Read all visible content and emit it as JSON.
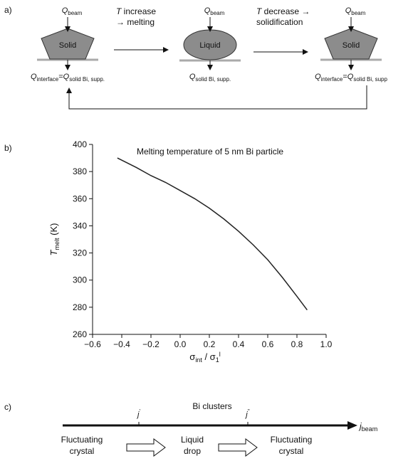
{
  "labels": {
    "a": "a)",
    "b": "b)",
    "c": "c)"
  },
  "panel_a": {
    "states": [
      {
        "beam": [
          {
            "text": "Q",
            "kind": "italic"
          },
          {
            "text": "beam",
            "kind": "sub"
          }
        ],
        "name": "Solid",
        "interface": [
          {
            "text": "Q",
            "kind": "italic"
          },
          {
            "text": "interface",
            "kind": "sub"
          },
          {
            "text": "=",
            "kind": "plain"
          },
          {
            "text": "Q",
            "kind": "italic"
          },
          {
            "text": "solid Bi, supp.",
            "kind": "sub"
          }
        ]
      },
      {
        "beam": [
          {
            "text": "Q",
            "kind": "italic"
          },
          {
            "text": "beam",
            "kind": "sub"
          }
        ],
        "name": "Liquid",
        "interface": [
          {
            "text": "Q",
            "kind": "italic"
          },
          {
            "text": "solid Bi, supp.",
            "kind": "sub"
          }
        ]
      },
      {
        "beam": [
          {
            "text": "Q",
            "kind": "italic"
          },
          {
            "text": "beam",
            "kind": "sub"
          }
        ],
        "name": "Solid",
        "interface": [
          {
            "text": "Q",
            "kind": "italic"
          },
          {
            "text": "interface",
            "kind": "sub"
          },
          {
            "text": "=",
            "kind": "plain"
          },
          {
            "text": "Q",
            "kind": "italic"
          },
          {
            "text": "solid Bi, supp",
            "kind": "sub"
          }
        ]
      }
    ],
    "transitions": [
      [
        [
          {
            "text": "T",
            "kind": "italic"
          },
          {
            "text": " increase",
            "kind": "plain"
          }
        ],
        [
          {
            "text": "→ melting",
            "kind": "plain"
          }
        ]
      ],
      [
        [
          {
            "text": "T",
            "kind": "italic"
          },
          {
            "text": " decrease →",
            "kind": "plain"
          }
        ],
        [
          {
            "text": "solidification",
            "kind": "plain"
          }
        ]
      ]
    ]
  },
  "chart_data": {
    "type": "line",
    "title": "Melting temperature of 5 nm Bi particle",
    "xlabel": [
      {
        "text": "σ",
        "kind": "plain"
      },
      {
        "text": "int",
        "kind": "sub"
      },
      {
        "text": " / σ",
        "kind": "plain"
      },
      {
        "text": "1",
        "kind": "sub"
      },
      {
        "text": "l",
        "kind": "sup"
      }
    ],
    "ylabel": [
      {
        "text": "T",
        "kind": "italic"
      },
      {
        "text": "melt",
        "kind": "sub"
      },
      {
        "text": " (K)",
        "kind": "plain"
      }
    ],
    "x": [
      -0.43,
      -0.3,
      -0.2,
      -0.1,
      0,
      0.1,
      0.2,
      0.3,
      0.4,
      0.5,
      0.6,
      0.7,
      0.8,
      0.87
    ],
    "values": [
      390,
      383,
      377,
      372,
      366,
      360,
      353,
      345,
      336,
      326,
      315,
      302,
      288,
      278
    ],
    "color": "#222222",
    "xlim": [
      -0.6,
      1.0
    ],
    "xticks": [
      {
        "value": -0.6,
        "label": "−0.6"
      },
      {
        "value": -0.4,
        "label": "−0.4"
      },
      {
        "value": -0.2,
        "label": "−0.2"
      },
      {
        "value": 0,
        "label": "0.0"
      },
      0.2,
      0.4,
      0.6,
      0.8,
      {
        "value": 1.0,
        "label": "1.0"
      }
    ],
    "ylim": [
      260,
      400
    ],
    "yticks": [
      260,
      280,
      300,
      320,
      340,
      360,
      380,
      400
    ],
    "grid": false
  },
  "panel_c": {
    "axis_label": "Bi clusters",
    "end_label": [
      {
        "text": "j",
        "kind": "italic"
      },
      {
        "text": "beam",
        "kind": "sub"
      }
    ],
    "ticks": [
      [
        {
          "text": "j",
          "kind": "italic"
        },
        {
          "text": "'",
          "kind": "sup"
        }
      ],
      [
        {
          "text": "j",
          "kind": "italic"
        },
        {
          "text": "''",
          "kind": "sup"
        }
      ]
    ],
    "states": [
      [
        "Fluctuating",
        "crystal"
      ],
      [
        "Liquid",
        "drop"
      ],
      [
        "Fluctuating",
        "crystal"
      ]
    ]
  }
}
